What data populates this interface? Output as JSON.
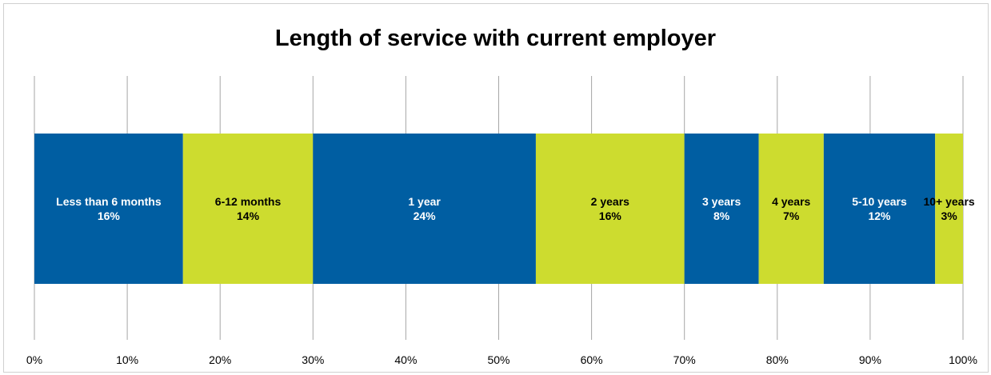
{
  "chart_data": {
    "type": "bar",
    "orientation": "horizontal-stacked-100",
    "title": "Length of service with current employer",
    "xlabel": "",
    "ylabel": "",
    "xlim": [
      0,
      100
    ],
    "x_ticks": [
      "0%",
      "10%",
      "20%",
      "30%",
      "40%",
      "50%",
      "60%",
      "70%",
      "80%",
      "90%",
      "100%"
    ],
    "grid": true,
    "legend": "none",
    "series": [
      {
        "name": "Less than 6 months",
        "value": 16,
        "label": "16%",
        "color": "#005ea2",
        "text_color": "#ffffff"
      },
      {
        "name": "6-12 months",
        "value": 14,
        "label": "14%",
        "color": "#cddc2f",
        "text_color": "#000000"
      },
      {
        "name": "1 year",
        "value": 24,
        "label": "24%",
        "color": "#005ea2",
        "text_color": "#ffffff"
      },
      {
        "name": "2 years",
        "value": 16,
        "label": "16%",
        "color": "#cddc2f",
        "text_color": "#000000"
      },
      {
        "name": "3 years",
        "value": 8,
        "label": "8%",
        "color": "#005ea2",
        "text_color": "#ffffff"
      },
      {
        "name": "4 years",
        "value": 7,
        "label": "7%",
        "color": "#cddc2f",
        "text_color": "#000000"
      },
      {
        "name": "5-10 years",
        "value": 12,
        "label": "12%",
        "color": "#005ea2",
        "text_color": "#ffffff"
      },
      {
        "name": "10+ years",
        "value": 3,
        "label": "3%",
        "color": "#cddc2f",
        "text_color": "#000000"
      }
    ]
  }
}
